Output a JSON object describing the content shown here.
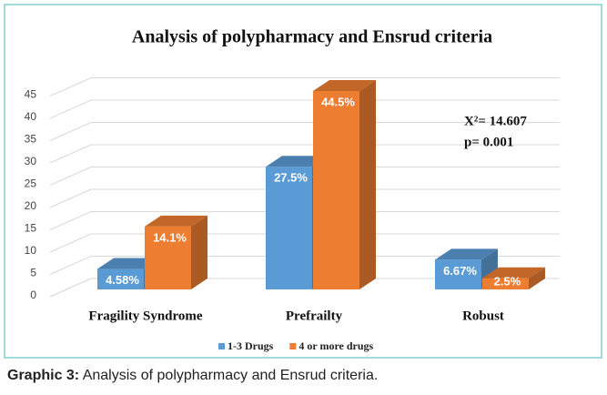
{
  "chart_data": {
    "type": "bar3d",
    "title": "Analysis of polypharmacy and Ensrud criteria",
    "categories": [
      "Fragility Syndrome",
      "Prefrailty",
      "Robust"
    ],
    "series": [
      {
        "name": "1-3 Drugs",
        "color": "#5b9bd5",
        "values": [
          4.58,
          27.5,
          6.67
        ],
        "value_labels": [
          "4.58%",
          "27.5%",
          "6.67%"
        ]
      },
      {
        "name": "4 or more drugs",
        "color": "#ed7d31",
        "values": [
          14.1,
          44.5,
          2.5
        ],
        "value_labels": [
          "14.1%",
          "44.5%",
          "2.5%"
        ]
      }
    ],
    "ylim": [
      0,
      45
    ],
    "yticks": [
      0,
      5,
      10,
      15,
      20,
      25,
      30,
      35,
      40,
      45
    ],
    "grid": true,
    "annotations": [
      "X²= 14.607",
      "p= 0.001"
    ],
    "legend": "bottom"
  },
  "caption": {
    "label": "Graphic 3:",
    "text": " Analysis of polypharmacy and Ensrud criteria."
  }
}
